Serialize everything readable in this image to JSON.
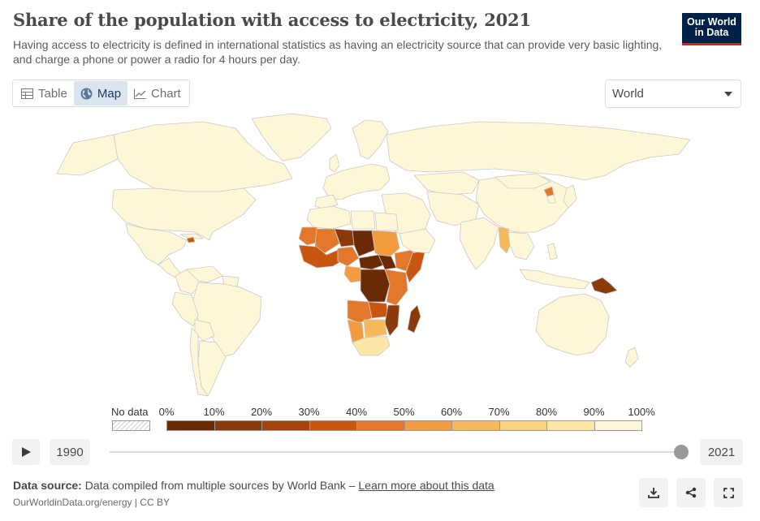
{
  "header": {
    "title": "Share of the population with access to electricity, 2021",
    "subtitle": "Having access to electricity is defined in international statistics as having an electricity source that can provide very basic lighting, and charge a phone or power a radio for 4 hours per day."
  },
  "logo": {
    "line1": "Our World",
    "line2": "in Data"
  },
  "tabs": [
    {
      "label": "Table",
      "icon": "table-icon",
      "active": false
    },
    {
      "label": "Map",
      "icon": "globe-icon",
      "active": true
    },
    {
      "label": "Chart",
      "icon": "line-chart-icon",
      "active": false
    }
  ],
  "region_select": {
    "value": "World"
  },
  "legend": {
    "no_data_label": "No data",
    "bins": [
      "0%",
      "10%",
      "20%",
      "30%",
      "40%",
      "50%",
      "60%",
      "70%",
      "80%",
      "90%",
      "100%"
    ],
    "colors": [
      "#6b2a06",
      "#8a3a0b",
      "#a5430d",
      "#c9560e",
      "#e4782a",
      "#f29c3f",
      "#f6b95a",
      "#f9d37f",
      "#fce7a8",
      "#fef7d7"
    ]
  },
  "map": {
    "land_color": "#fef7d7",
    "border_color": "#c9c9c9"
  },
  "timeline": {
    "start_year": "1990",
    "end_year": "2021",
    "position": 1.0
  },
  "footer": {
    "source_label": "Data source:",
    "source_text": "Data compiled from multiple sources by World Bank –",
    "source_link": "Learn more about this data",
    "url": "OurWorldinData.org/energy | CC BY"
  },
  "actions": [
    {
      "name": "download-icon"
    },
    {
      "name": "share-icon"
    },
    {
      "name": "fullscreen-icon"
    }
  ]
}
